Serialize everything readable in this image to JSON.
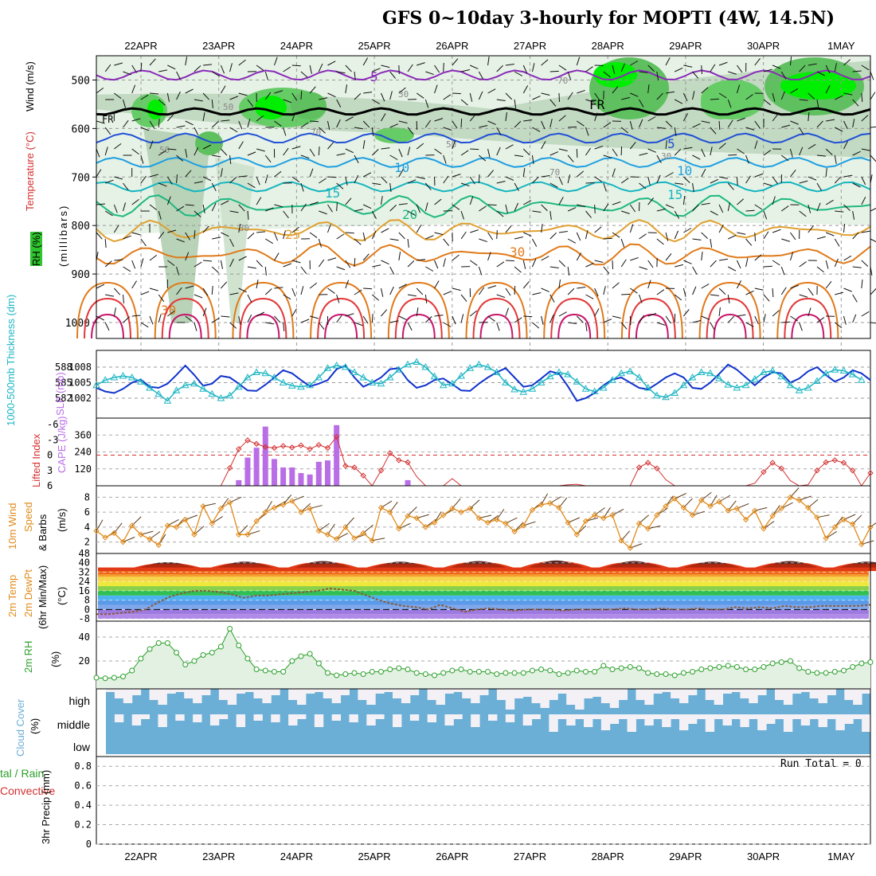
{
  "title": "GFS 0~10day 3-hourly for MOPTI (4W, 14.5N)",
  "dates": [
    "22APR",
    "23APR",
    "24APR",
    "25APR",
    "26APR",
    "27APR",
    "28APR",
    "29APR",
    "30APR",
    "1MAY"
  ],
  "run_total": "Run Total = 0",
  "panel_labels": {
    "wind": "Wind (m/s)",
    "temp": "Temperature (°C)",
    "rh": "RH (%)",
    "millibars": "(millibars)",
    "thickness": "1000-500mb Thickness (dm)",
    "slp": "SLP (mb)",
    "lifted": "Lifted Index",
    "cape": "CAPE (J/kg)",
    "wind10": "10m Wind",
    "speed": "Speed",
    "barbs": "& Barbs",
    "ms": "(m/s)",
    "temp2m": "2m Temp",
    "dewpt2m": "2m DewPt",
    "minmax": "(6hr Min/Max)",
    "degc": "(°C)",
    "rh2m": "2m RH",
    "pct": "(%)",
    "cloud": "Cloud Cover",
    "cloudpct": "(%)",
    "precip_total": "tal / Rain",
    "precip_conv": "Convective",
    "precip_unit": "3hr Precip (mm)"
  },
  "colors": {
    "green": "#2ca02c",
    "rh_bright": "#00ee00",
    "cyan": "#1fb6c4",
    "blue": "#1133cc",
    "orange": "#e08a1a",
    "red": "#d43030",
    "purple": "#b96ee6",
    "cloud_blue": "#6baed6",
    "cloud_white": "#f3f1f6"
  },
  "chart_data": [
    {
      "type": "heatmap",
      "name": "pressure-time cross section",
      "ylabel": "millibars",
      "y_ticks": [
        500,
        600,
        700,
        800,
        900,
        1000
      ],
      "ylim": [
        1050,
        450
      ],
      "isotherms": [
        {
          "label": "5",
          "mb": 490,
          "color": "#8a2bb8"
        },
        {
          "label": "FR",
          "mb": 565,
          "color": "#000000"
        },
        {
          "label": "5",
          "mb": 620,
          "color": "#1f4fd6"
        },
        {
          "label": "10",
          "mb": 670,
          "color": "#1f9fe0"
        },
        {
          "label": "15",
          "mb": 720,
          "color": "#16b5bf"
        },
        {
          "label": "20",
          "mb": 760,
          "color": "#1fb880"
        },
        {
          "label": "25",
          "mb": 810,
          "color": "#e0a030"
        },
        {
          "label": "30",
          "mb": 860,
          "color": "#e07a1a"
        }
      ],
      "rh_labels": [
        "50",
        "30",
        "70",
        "70",
        "50",
        "30",
        "50",
        "70",
        "30"
      ],
      "low_level_label": "30"
    },
    {
      "type": "line",
      "name": "thickness and slp",
      "thickness_ticks": [
        582,
        585,
        588
      ],
      "slp_ticks": [
        1002,
        1005,
        1008
      ],
      "series": [
        {
          "name": "1000-500mb Thickness (dm)",
          "values": [
            584.5,
            585.5,
            586,
            586.3,
            586,
            585.2,
            584,
            582.8,
            581.5,
            583.5,
            584.5,
            584.8,
            583.8,
            582.8,
            582,
            582.5,
            584.2,
            586,
            587,
            586.8,
            586,
            585,
            584.4,
            584.2,
            584.5,
            586,
            587.8,
            588.3,
            588,
            587,
            586,
            585,
            584.8,
            586,
            587.5,
            588.5,
            589,
            588,
            586.2,
            584.5,
            584.8,
            586.3,
            587.8,
            588.5,
            588,
            587,
            585,
            583.7,
            583.2,
            583.8,
            585,
            586.2,
            587,
            586.6,
            585.2,
            583.8,
            583.3,
            584,
            585.5,
            586.8,
            587.2,
            586,
            584,
            582.5,
            582.2,
            583,
            584.5,
            586,
            587,
            586.8,
            585.8,
            584.6,
            584,
            584.5,
            585.7,
            587,
            587.3,
            586.2,
            584.5,
            583.5,
            584,
            585.3,
            586.8,
            587.5,
            587.3,
            586.6,
            585.5
          ]
        },
        {
          "name": "SLP (mb)",
          "values": [
            1004,
            1003.3,
            1003,
            1003.8,
            1005,
            1005.6,
            1004.2,
            1004,
            1004.8,
            1006.5,
            1008.3,
            1006.5,
            1004.4,
            1004.8,
            1006.3,
            1006,
            1004.8,
            1003.5,
            1003.4,
            1004.6,
            1006,
            1007.4,
            1006.8,
            1005.5,
            1004.3,
            1004.8,
            1005.5,
            1007.6,
            1008.3,
            1006,
            1004.2,
            1005,
            1006,
            1007.6,
            1007.8,
            1005.5,
            1004,
            1004.5,
            1005.5,
            1005.8,
            1004.7,
            1003.5,
            1003.4,
            1004.8,
            1006,
            1007,
            1007.8,
            1006,
            1004.2,
            1004.5,
            1005.8,
            1007.2,
            1006.7,
            1004.3,
            1001.5,
            1002,
            1003,
            1004.5,
            1005.6,
            1006,
            1005,
            1004,
            1003.7,
            1004.8,
            1006,
            1006.8,
            1006,
            1004,
            1003.8,
            1005,
            1006.7,
            1008.5,
            1007.5,
            1006,
            1004.5,
            1006,
            1007,
            1006.8,
            1005,
            1005.8,
            1007.2,
            1008,
            1006.5,
            1005.2,
            1006,
            1007.4,
            1006.8,
            1005.5
          ]
        }
      ]
    },
    {
      "type": "bar",
      "name": "cape and lifted index",
      "cape_ticks": [
        120,
        240,
        360
      ],
      "li_ticks": [
        "-6",
        "-3",
        "0",
        "3",
        "6"
      ],
      "cape_values": [
        0,
        0,
        0,
        0,
        0,
        0,
        0,
        0,
        0,
        0,
        0,
        0,
        0,
        0,
        0,
        0,
        40,
        200,
        270,
        420,
        190,
        130,
        130,
        90,
        80,
        170,
        180,
        430,
        0,
        0,
        0,
        0,
        0,
        0,
        0,
        40,
        0,
        0,
        0,
        0,
        0,
        0,
        0,
        0,
        0,
        0,
        0,
        0,
        0,
        0,
        0,
        0,
        0,
        0,
        0,
        0,
        0,
        0,
        0,
        0,
        0,
        0,
        0,
        0,
        0,
        0,
        0,
        0,
        0,
        0,
        0,
        0,
        0,
        0,
        0,
        0,
        0,
        0,
        0,
        0,
        0,
        0,
        0,
        0,
        0,
        0,
        0,
        0
      ],
      "lifted_index": [
        6.5,
        6.2,
        6.5,
        6.8,
        6.5,
        6.6,
        6.8,
        6.9,
        6.5,
        6.7,
        6.8,
        6.6,
        6.5,
        6.8,
        6.8,
        2.5,
        -1.2,
        -2.9,
        -2.2,
        -1.6,
        -1.4,
        -1.8,
        -1.5,
        -1.9,
        -1.2,
        -2.0,
        -1.4,
        -3.6,
        2.1,
        2.4,
        4.0,
        6.5,
        3.0,
        -0.4,
        1.0,
        1.4,
        4.2,
        6.5,
        7.0,
        6.0,
        4.6,
        6.3,
        6.6,
        6.5,
        6.8,
        6.6,
        6.6,
        6.8,
        6.5,
        6.0,
        6.5,
        6.6,
        6.5,
        5.8,
        5.7,
        6.6,
        6.9,
        6.8,
        6.5,
        6.6,
        6.0,
        2.4,
        1.5,
        2.6,
        4.8,
        6.0,
        6.5,
        6.8,
        6.5,
        6.6,
        6.4,
        6.6,
        6.6,
        6.6,
        5.5,
        3.3,
        1.5,
        2.6,
        5.0,
        6.5,
        5.8,
        3.0,
        1.4,
        1.0,
        1.5,
        3.0,
        6.5,
        3.5
      ]
    },
    {
      "type": "line",
      "name": "10m wind speed",
      "y_ticks": [
        2,
        4,
        6,
        8
      ],
      "values": [
        3.5,
        2.6,
        3.2,
        2.0,
        4.2,
        3.0,
        2.4,
        1.6,
        4.2,
        4.0,
        5.0,
        3.0,
        6.8,
        4.5,
        6.5,
        7.3,
        3.0,
        3.0,
        4.8,
        6.0,
        6.6,
        7.0,
        7.5,
        6.0,
        6.5,
        3.5,
        3.0,
        2.4,
        4.0,
        2.5,
        3.2,
        2.2,
        6.6,
        6.0,
        3.8,
        5.5,
        5.2,
        4.0,
        4.6,
        5.6,
        6.5,
        6.0,
        6.5,
        5.2,
        4.6,
        5.0,
        4.5,
        3.4,
        4.2,
        6.3,
        7.0,
        7.2,
        6.6,
        4.6,
        3.0,
        4.8,
        5.6,
        5.2,
        5.6,
        2.2,
        1.2,
        4.5,
        3.8,
        5.6,
        6.8,
        7.8,
        6.6,
        5.6,
        7.6,
        6.8,
        7.4,
        6.2,
        6.5,
        5.0,
        6.2,
        3.8,
        5.5,
        6.5,
        8.0,
        7.6,
        6.6,
        5.3,
        2.5,
        4.0,
        5.0,
        4.4,
        1.7,
        4.0
      ]
    },
    {
      "type": "area",
      "name": "2m temp and dewpoint",
      "y_ticks": [
        -8,
        0,
        8,
        16,
        24,
        32,
        40,
        48
      ],
      "tick_labels": [
        "-8",
        "0",
        "8",
        "16",
        "24",
        "32",
        "40",
        "48"
      ],
      "temp_min": [
        30,
        30,
        31,
        31,
        29,
        30,
        31,
        29,
        30,
        31,
        30,
        30,
        31,
        30,
        30,
        30,
        30,
        31,
        30,
        31,
        29,
        30,
        30,
        29,
        30,
        30,
        31,
        30,
        30,
        29
      ],
      "temp_max": [
        39,
        40,
        41,
        40,
        41,
        42,
        41,
        40,
        41,
        40
      ],
      "dewpoint": [
        -4,
        -4,
        -3,
        -2,
        0,
        6,
        11,
        14,
        16,
        16,
        15,
        13,
        10,
        12,
        12,
        13,
        14,
        15,
        16,
        18,
        17,
        16,
        12,
        8,
        5,
        3,
        2,
        0,
        4,
        1,
        -2,
        0,
        1,
        0,
        -1,
        0,
        0,
        0,
        -1,
        0,
        0,
        0,
        0,
        1,
        0,
        0,
        1,
        0,
        0,
        1,
        0,
        0,
        2,
        1,
        2,
        1,
        3,
        2,
        2,
        3,
        3,
        3,
        3,
        4
      ]
    },
    {
      "type": "area",
      "name": "2m relative humidity",
      "y_ticks": [
        20,
        40
      ],
      "values": [
        6,
        5.5,
        6,
        7,
        12,
        22,
        30,
        35,
        35,
        27,
        17,
        20,
        25,
        27,
        32,
        47,
        33,
        22,
        13,
        12,
        11,
        11,
        20,
        24,
        26,
        18,
        10,
        8,
        9,
        10,
        9,
        11,
        11,
        13,
        14,
        13,
        10,
        9,
        8,
        10,
        12,
        13,
        11,
        11,
        11,
        9,
        10,
        10,
        10,
        12,
        13,
        12,
        9,
        10,
        12,
        11,
        11,
        16,
        13,
        14,
        15,
        14,
        10,
        9,
        9,
        8,
        10,
        11,
        13,
        14,
        15,
        16,
        15,
        13,
        13,
        15,
        18,
        19,
        20,
        14,
        11,
        10,
        10,
        11,
        12,
        15,
        18,
        19
      ]
    },
    {
      "type": "heatmap",
      "name": "cloud cover",
      "levels": [
        "high",
        "middle",
        "low"
      ]
    },
    {
      "type": "bar",
      "name": "3hr precipitation",
      "y_ticks": [
        0,
        0.2,
        0.4,
        0.6,
        0.8
      ],
      "tick_labels": [
        "0",
        "0.2",
        "0.4",
        "0.6",
        "0.8"
      ],
      "values": []
    }
  ]
}
